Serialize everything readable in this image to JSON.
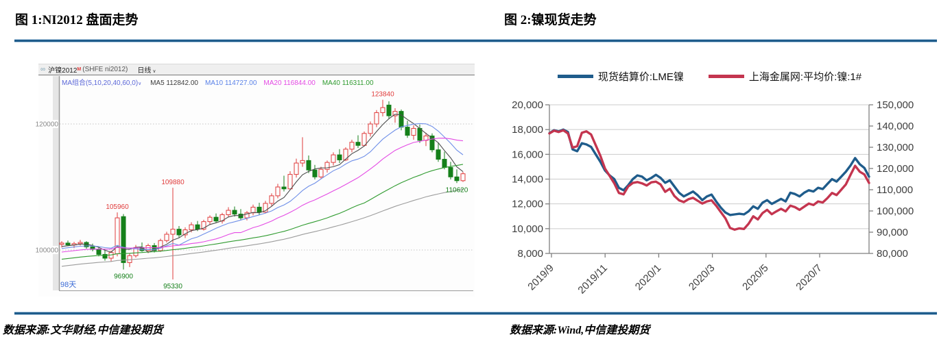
{
  "figure1": {
    "title": "图 1:NI2012 盘面走势",
    "source": "数据来源:文华财经,中信建投期货",
    "header": {
      "link_icon_glyph": "∞",
      "symbol": "沪镍2012",
      "symbol_sup": "M",
      "code": "(SHFE ni2012)",
      "period": "日线",
      "chevron": "∨"
    },
    "ma_row": {
      "combo": "MA组合(5,10,20,40,60,0)",
      "chevron": "∨",
      "items": [
        {
          "label": "MA5",
          "value": "112842.00",
          "color": "#3c3c3c"
        },
        {
          "label": "MA10",
          "value": "114727.00",
          "color": "#5a82e8"
        },
        {
          "label": "MA20",
          "value": "116844.00",
          "color": "#e44ae4"
        },
        {
          "label": "MA40",
          "value": "116311.00",
          "color": "#2f9b2f"
        }
      ]
    },
    "bottom_left_label": "98天"
  },
  "figure2": {
    "title": "图 2:镍现货走势",
    "source": "数据来源:Wind,中信建投期货"
  },
  "chart_data": [
    {
      "type": "candlestick",
      "title": "NI2012 盘面走势 (SHFE ni2012 日线)",
      "up_color": "#e03b3b",
      "down_color": "#15801a",
      "y_axis_labels": [
        {
          "label": "120000",
          "value": 120000
        },
        {
          "label": "100000",
          "value": 100000
        }
      ],
      "ylim": [
        94000,
        126500
      ],
      "ma_windows": [
        5,
        10,
        20,
        40,
        60
      ],
      "ma_colors": [
        "#4d4d4d",
        "#6f8fe8",
        "#e44ae4",
        "#2f9b2f",
        "#9c9c9c"
      ],
      "ma_prehistory": {
        "from": 94000,
        "to": 100600,
        "count": 60
      },
      "candles": [
        [
          100900,
          101400,
          100400,
          101100
        ],
        [
          101100,
          101500,
          100600,
          100800
        ],
        [
          100800,
          101300,
          100300,
          101000
        ],
        [
          101000,
          101600,
          100700,
          101200
        ],
        [
          101200,
          101400,
          100200,
          100500
        ],
        [
          100500,
          101000,
          99800,
          100100
        ],
        [
          100100,
          100600,
          99000,
          99300
        ],
        [
          99300,
          100200,
          98300,
          98700
        ],
        [
          98700,
          99900,
          98200,
          99600
        ],
        [
          99400,
          105960,
          99000,
          105100
        ],
        [
          105300,
          105700,
          96900,
          98000
        ],
        [
          98000,
          99500,
          97300,
          99100
        ],
        [
          99100,
          100800,
          98800,
          100400
        ],
        [
          100400,
          101200,
          99700,
          99900
        ],
        [
          99900,
          101000,
          99500,
          100700
        ],
        [
          100700,
          101100,
          99600,
          99900
        ],
        [
          99900,
          101800,
          99700,
          101500
        ],
        [
          101500,
          102900,
          101200,
          102500
        ],
        [
          102500,
          109880,
          95330,
          103300
        ],
        [
          103300,
          103800,
          102000,
          102400
        ],
        [
          102400,
          103600,
          101900,
          103200
        ],
        [
          103200,
          104400,
          102800,
          104000
        ],
        [
          104000,
          104600,
          103000,
          103300
        ],
        [
          103300,
          104800,
          103100,
          104500
        ],
        [
          104500,
          105500,
          104000,
          105200
        ],
        [
          105200,
          105800,
          104300,
          104600
        ],
        [
          104600,
          105900,
          104200,
          105600
        ],
        [
          105600,
          106800,
          105200,
          106300
        ],
        [
          106300,
          106900,
          105300,
          105700
        ],
        [
          105700,
          106500,
          104800,
          105100
        ],
        [
          105100,
          106200,
          104700,
          105900
        ],
        [
          105900,
          107200,
          105500,
          106800
        ],
        [
          106800,
          107500,
          105600,
          106000
        ],
        [
          106000,
          107800,
          105800,
          107400
        ],
        [
          107400,
          109000,
          107000,
          108600
        ],
        [
          108600,
          110500,
          108200,
          110000
        ],
        [
          110000,
          111800,
          109300,
          109700
        ],
        [
          109700,
          112500,
          109500,
          112000
        ],
        [
          112000,
          114500,
          111500,
          113800
        ],
        [
          113800,
          117900,
          113200,
          114200
        ],
        [
          114200,
          115000,
          112200,
          112700
        ],
        [
          112700,
          113500,
          111200,
          111600
        ],
        [
          111600,
          113200,
          111300,
          112800
        ],
        [
          112800,
          114200,
          112300,
          113900
        ],
        [
          113900,
          115500,
          113400,
          115100
        ],
        [
          115100,
          116000,
          113800,
          114300
        ],
        [
          114300,
          116300,
          114100,
          116000
        ],
        [
          116000,
          117500,
          115500,
          117100
        ],
        [
          117100,
          118200,
          116200,
          116600
        ],
        [
          116600,
          118800,
          116400,
          118500
        ],
        [
          118500,
          120400,
          118000,
          120000
        ],
        [
          120000,
          122200,
          119500,
          121800
        ],
        [
          121800,
          123840,
          121200,
          122600
        ],
        [
          123000,
          123600,
          120800,
          121300
        ],
        [
          121300,
          122500,
          120200,
          122000
        ],
        [
          122000,
          122300,
          119000,
          119500
        ],
        [
          119500,
          120500,
          117800,
          118200
        ],
        [
          118200,
          119800,
          117500,
          119300
        ],
        [
          119300,
          119900,
          117000,
          117400
        ],
        [
          117400,
          118600,
          116500,
          118100
        ],
        [
          118100,
          118500,
          115500,
          115900
        ],
        [
          115900,
          117000,
          114000,
          114400
        ],
        [
          114400,
          115600,
          112800,
          113100
        ],
        [
          113100,
          114000,
          111200,
          111600
        ],
        [
          111600,
          112800,
          110620,
          111000
        ],
        [
          111000,
          112400,
          110800,
          112100
        ]
      ],
      "annotations": [
        {
          "index": 9,
          "text": "105960",
          "color": "#e03b3b",
          "pos": "above"
        },
        {
          "index": 10,
          "text": "96900",
          "color": "#15801a",
          "pos": "below"
        },
        {
          "index": 18,
          "text": "109880",
          "color": "#e03b3b",
          "pos": "above"
        },
        {
          "index": 18,
          "text": "95330",
          "color": "#15801a",
          "pos": "below"
        },
        {
          "index": 52,
          "text": "123840",
          "color": "#e03b3b",
          "pos": "above"
        },
        {
          "index": 64,
          "text": "110620",
          "color": "#15801a",
          "pos": "below"
        }
      ]
    },
    {
      "type": "line",
      "title": "镍现货走势",
      "legend_position": "top",
      "grid": true,
      "x_tick_labels": [
        "2019/9",
        "2019/11",
        "2020/1",
        "2020/3",
        "2020/5",
        "2020/7"
      ],
      "left_axis": {
        "min": 8000,
        "max": 20000,
        "ticks": [
          {
            "label": "8,000",
            "value": 8000
          },
          {
            "label": "10,000",
            "value": 10000
          },
          {
            "label": "12,000",
            "value": 12000
          },
          {
            "label": "14,000",
            "value": 14000
          },
          {
            "label": "16,000",
            "value": 16000
          },
          {
            "label": "18,000",
            "value": 18000
          },
          {
            "label": "20,000",
            "value": 20000
          }
        ]
      },
      "right_axis": {
        "min": 80000,
        "max": 150000,
        "ticks": [
          {
            "label": "80,000",
            "value": 80000
          },
          {
            "label": "90,000",
            "value": 90000
          },
          {
            "label": "100,000",
            "value": 100000
          },
          {
            "label": "110,000",
            "value": 110000
          },
          {
            "label": "120,000",
            "value": 120000
          },
          {
            "label": "130,000",
            "value": 130000
          },
          {
            "label": "140,000",
            "value": 140000
          },
          {
            "label": "150,000",
            "value": 150000
          }
        ]
      },
      "series": [
        {
          "name": "现货结算价:LME镍",
          "color": "#1f5c8b",
          "axis": "left",
          "values": [
            17700,
            17950,
            17850,
            18000,
            17800,
            16400,
            16250,
            16900,
            16800,
            16600,
            16000,
            15400,
            14700,
            14300,
            14000,
            13300,
            13100,
            13500,
            14000,
            14300,
            14200,
            13900,
            14100,
            14350,
            14100,
            13700,
            13900,
            13400,
            12900,
            12600,
            12800,
            13000,
            12700,
            12300,
            12600,
            12750,
            12200,
            11700,
            11300,
            11100,
            11150,
            11200,
            11150,
            11400,
            11800,
            11600,
            12100,
            12300,
            12000,
            12200,
            12400,
            12200,
            12900,
            12800,
            12600,
            12900,
            13100,
            13000,
            13300,
            13200,
            13600,
            14000,
            13800,
            14200,
            14600,
            15100,
            15700,
            15200,
            14900,
            14200
          ]
        },
        {
          "name": "上海金属网:平均价:镍:1#",
          "color": "#c4354f",
          "axis": "right",
          "values": [
            136500,
            137800,
            137200,
            138000,
            136500,
            129800,
            130500,
            136800,
            137500,
            136000,
            131000,
            126000,
            120000,
            116500,
            113000,
            108500,
            107800,
            111500,
            113200,
            113600,
            113000,
            112000,
            113500,
            113800,
            112500,
            109000,
            110500,
            107000,
            105000,
            104200,
            105500,
            106200,
            104800,
            103500,
            104500,
            105000,
            102500,
            99500,
            96500,
            92000,
            91200,
            91800,
            91500,
            94000,
            97500,
            96000,
            99000,
            100500,
            98500,
            99800,
            101000,
            99800,
            102500,
            101800,
            100500,
            102000,
            103500,
            102800,
            104500,
            104000,
            106000,
            108500,
            107500,
            110000,
            112500,
            117000,
            121300,
            118500,
            117200,
            113200
          ]
        }
      ]
    }
  ]
}
